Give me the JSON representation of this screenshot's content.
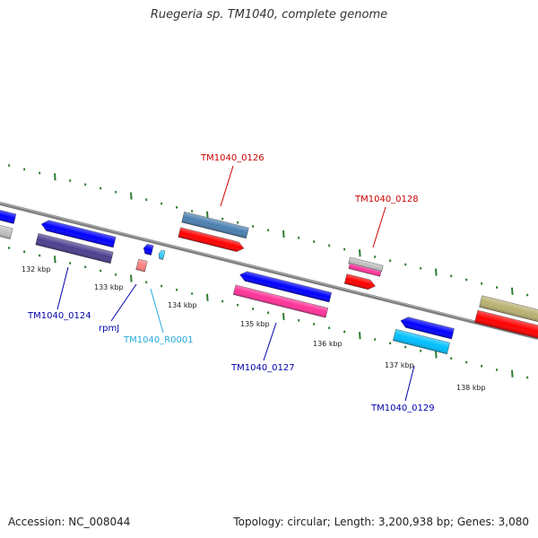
{
  "title": "Ruegeria sp. TM1040, complete genome",
  "footer": {
    "accession": "Accession: NC_008044",
    "summary": "Topology: circular; Length: 3,200,938 bp; Genes: 3,080"
  },
  "colors": {
    "backbone": "#808080",
    "ticks": "#2e7d32",
    "plus_label": "#cc0000",
    "minus_label": "#0000aa",
    "rna_label": "#22aadd"
  },
  "tick_labels": [
    "132 kbp",
    "133 kbp",
    "134 kbp",
    "135 kbp",
    "136 kbp",
    "137 kbp",
    "138 kbp"
  ],
  "gene_labels": [
    {
      "text": "TM1040_0126",
      "kind": "plus"
    },
    {
      "text": "TM1040_0128",
      "kind": "plus"
    },
    {
      "text": "TM1040_0124",
      "kind": "minus"
    },
    {
      "text": "rpmJ",
      "kind": "minus"
    },
    {
      "text": "TM1040_R0001",
      "kind": "rna"
    },
    {
      "text": "TM1040_0127",
      "kind": "minus"
    },
    {
      "text": "TM1040_0129",
      "kind": "minus"
    }
  ],
  "features": [
    {
      "name": "TM1040_0126",
      "color": "#4a7fb0",
      "direction": "none"
    },
    {
      "name": "TM1040_0126 CDS",
      "color": "#ff0000",
      "direction": "forward"
    },
    {
      "name": "TM1040_0128",
      "color": "#c0c0c0",
      "direction": "none"
    },
    {
      "name": "TM1040_0128 CDS",
      "color": "#ff3399",
      "direction": "none"
    },
    {
      "name": "TM1040_0128 gene",
      "color": "#ff0000",
      "direction": "forward"
    },
    {
      "name": "TM1040_0124",
      "color": "#0000ff",
      "direction": "reverse"
    },
    {
      "name": "TM1040_0124 CDS",
      "color": "#4b3f8f",
      "direction": "none"
    },
    {
      "name": "rpmJ",
      "color": "#0000ff",
      "direction": "reverse"
    },
    {
      "name": "rpmJ CDS",
      "color": "#ff8080",
      "direction": "none"
    },
    {
      "name": "TM1040_R0001",
      "color": "#33ccff",
      "direction": "reverse"
    },
    {
      "name": "TM1040_0127",
      "color": "#0000ff",
      "direction": "reverse"
    },
    {
      "name": "TM1040_0127 CDS",
      "color": "#ff3399",
      "direction": "none"
    },
    {
      "name": "TM1040_0129",
      "color": "#0000ff",
      "direction": "reverse"
    },
    {
      "name": "TM1040_0129 CDS",
      "color": "#00bfff",
      "direction": "none"
    },
    {
      "name": "left edge gene",
      "color": "#0000ff",
      "direction": "none"
    },
    {
      "name": "left edge CDS",
      "color": "#c0c0c0",
      "direction": "none"
    },
    {
      "name": "right edge gene",
      "color": "#b8b070",
      "direction": "none"
    },
    {
      "name": "right edge CDS",
      "color": "#ff0000",
      "direction": "none"
    }
  ]
}
